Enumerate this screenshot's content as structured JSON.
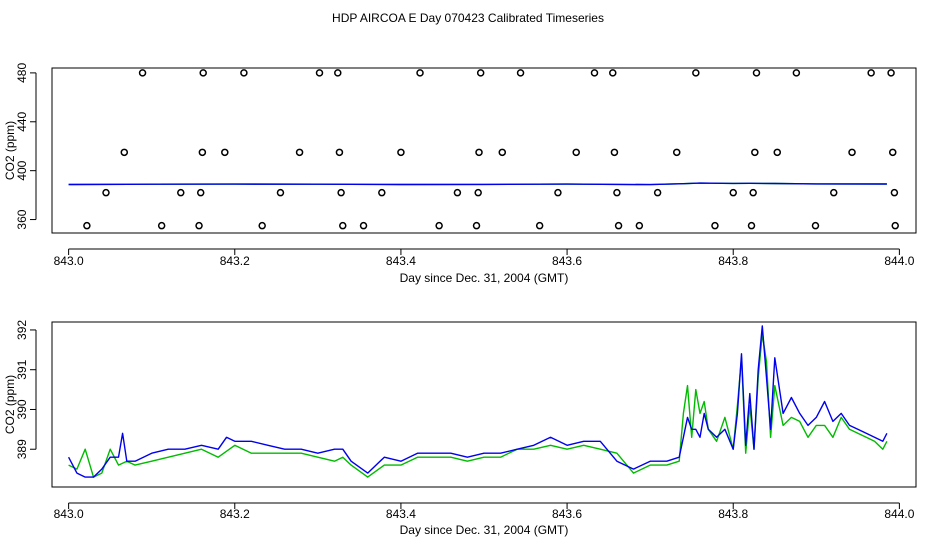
{
  "title": "HDP AIRCOA E  Day 070423  Calibrated Timeseries",
  "chart_data": [
    {
      "type": "scatter",
      "xlabel": "Day since Dec. 31, 2004 (GMT)",
      "ylabel": "CO2 (ppm)",
      "xlim": [
        842.98,
        844.02
      ],
      "ylim": [
        349,
        484
      ],
      "xticks": [
        {
          "v": 843.0,
          "label": "843.0"
        },
        {
          "v": 843.2,
          "label": "843.2"
        },
        {
          "v": 843.4,
          "label": "843.4"
        },
        {
          "v": 843.6,
          "label": "843.6"
        },
        {
          "v": 843.8,
          "label": "843.8"
        },
        {
          "v": 844.0,
          "label": "844.0"
        }
      ],
      "yticks": [
        {
          "v": 360,
          "label": "360"
        },
        {
          "v": 400,
          "label": "400"
        },
        {
          "v": 440,
          "label": "440"
        },
        {
          "v": 480,
          "label": "480"
        }
      ],
      "grid": false,
      "colors": {
        "points": "#000000",
        "line_green": "#00bb00",
        "line_blue": "#0000ee"
      },
      "points": [
        {
          "x": 843.089,
          "y": 480
        },
        {
          "x": 843.162,
          "y": 480
        },
        {
          "x": 843.211,
          "y": 480
        },
        {
          "x": 843.302,
          "y": 480
        },
        {
          "x": 843.324,
          "y": 480
        },
        {
          "x": 843.423,
          "y": 480
        },
        {
          "x": 843.496,
          "y": 480
        },
        {
          "x": 843.544,
          "y": 480
        },
        {
          "x": 843.633,
          "y": 480
        },
        {
          "x": 843.655,
          "y": 480
        },
        {
          "x": 843.755,
          "y": 480
        },
        {
          "x": 843.828,
          "y": 480
        },
        {
          "x": 843.876,
          "y": 480
        },
        {
          "x": 843.966,
          "y": 480
        },
        {
          "x": 843.99,
          "y": 480
        },
        {
          "x": 843.067,
          "y": 415
        },
        {
          "x": 843.161,
          "y": 415
        },
        {
          "x": 843.188,
          "y": 415
        },
        {
          "x": 843.278,
          "y": 415
        },
        {
          "x": 843.326,
          "y": 415
        },
        {
          "x": 843.4,
          "y": 415
        },
        {
          "x": 843.494,
          "y": 415
        },
        {
          "x": 843.522,
          "y": 415
        },
        {
          "x": 843.611,
          "y": 415
        },
        {
          "x": 843.657,
          "y": 415
        },
        {
          "x": 843.732,
          "y": 415
        },
        {
          "x": 843.826,
          "y": 415
        },
        {
          "x": 843.853,
          "y": 415
        },
        {
          "x": 843.943,
          "y": 415
        },
        {
          "x": 843.992,
          "y": 415
        },
        {
          "x": 843.045,
          "y": 382
        },
        {
          "x": 843.135,
          "y": 382
        },
        {
          "x": 843.159,
          "y": 382
        },
        {
          "x": 843.255,
          "y": 382
        },
        {
          "x": 843.328,
          "y": 382
        },
        {
          "x": 843.377,
          "y": 382
        },
        {
          "x": 843.468,
          "y": 382
        },
        {
          "x": 843.493,
          "y": 382
        },
        {
          "x": 843.589,
          "y": 382
        },
        {
          "x": 843.66,
          "y": 382
        },
        {
          "x": 843.709,
          "y": 382
        },
        {
          "x": 843.8,
          "y": 382
        },
        {
          "x": 843.824,
          "y": 382
        },
        {
          "x": 843.921,
          "y": 382
        },
        {
          "x": 843.994,
          "y": 382
        },
        {
          "x": 843.022,
          "y": 355
        },
        {
          "x": 843.112,
          "y": 355
        },
        {
          "x": 843.157,
          "y": 355
        },
        {
          "x": 843.233,
          "y": 355
        },
        {
          "x": 843.33,
          "y": 355
        },
        {
          "x": 843.355,
          "y": 355
        },
        {
          "x": 843.446,
          "y": 355
        },
        {
          "x": 843.491,
          "y": 355
        },
        {
          "x": 843.567,
          "y": 355
        },
        {
          "x": 843.662,
          "y": 355
        },
        {
          "x": 843.687,
          "y": 355
        },
        {
          "x": 843.778,
          "y": 355
        },
        {
          "x": 843.822,
          "y": 355
        },
        {
          "x": 843.899,
          "y": 355
        },
        {
          "x": 843.995,
          "y": 355
        }
      ],
      "series": [
        {
          "color": "green",
          "x": [
            843.0,
            843.1,
            843.2,
            843.3,
            843.4,
            843.5,
            843.6,
            843.7,
            843.74,
            843.76,
            843.8,
            843.82,
            843.85,
            843.9,
            843.985
          ],
          "y": [
            388.7,
            388.9,
            389.0,
            388.9,
            388.7,
            388.8,
            389.0,
            388.6,
            389.3,
            389.8,
            389.6,
            389.7,
            389.5,
            389.2,
            389.1
          ]
        },
        {
          "color": "blue",
          "x": [
            843.0,
            843.1,
            843.2,
            843.3,
            843.4,
            843.5,
            843.6,
            843.7,
            843.74,
            843.76,
            843.8,
            843.82,
            843.85,
            843.9,
            843.985
          ],
          "y": [
            388.7,
            388.9,
            389.0,
            388.9,
            388.7,
            388.8,
            389.0,
            388.6,
            389.3,
            389.8,
            389.6,
            389.7,
            389.5,
            389.2,
            389.1
          ]
        }
      ]
    },
    {
      "type": "line",
      "xlabel": "Day since Dec. 31, 2004 (GMT)",
      "ylabel": "CO2 (ppm)",
      "xlim": [
        842.98,
        844.02
      ],
      "ylim": [
        388.05,
        392.2
      ],
      "xticks": [
        {
          "v": 843.0,
          "label": "843.0"
        },
        {
          "v": 843.2,
          "label": "843.2"
        },
        {
          "v": 843.4,
          "label": "843.4"
        },
        {
          "v": 843.6,
          "label": "843.6"
        },
        {
          "v": 843.8,
          "label": "843.8"
        },
        {
          "v": 844.0,
          "label": "844.0"
        }
      ],
      "yticks": [
        {
          "v": 389,
          "label": "389"
        },
        {
          "v": 390,
          "label": "390"
        },
        {
          "v": 391,
          "label": "391"
        },
        {
          "v": 392,
          "label": "392"
        }
      ],
      "grid": false,
      "colors": {
        "line_green": "#00bb00",
        "line_blue": "#0000ee"
      },
      "series": [
        {
          "color": "green",
          "x": [
            843.0,
            843.01,
            843.02,
            843.03,
            843.04,
            843.05,
            843.06,
            843.07,
            843.08,
            843.1,
            843.12,
            843.14,
            843.16,
            843.18,
            843.2,
            843.22,
            843.24,
            843.26,
            843.28,
            843.3,
            843.32,
            843.33,
            843.34,
            843.36,
            843.38,
            843.4,
            843.42,
            843.44,
            843.46,
            843.48,
            843.5,
            843.52,
            843.54,
            843.56,
            843.58,
            843.6,
            843.62,
            843.64,
            843.66,
            843.68,
            843.7,
            843.72,
            843.735,
            843.74,
            843.745,
            843.75,
            843.755,
            843.76,
            843.765,
            843.77,
            843.78,
            843.79,
            843.8,
            843.805,
            843.81,
            843.815,
            843.82,
            843.825,
            843.83,
            843.835,
            843.84,
            843.845,
            843.85,
            843.86,
            843.87,
            843.88,
            843.89,
            843.9,
            843.91,
            843.92,
            843.93,
            843.94,
            843.95,
            843.96,
            843.97,
            843.98,
            843.985
          ],
          "y": [
            388.6,
            388.5,
            389.0,
            388.3,
            388.4,
            389.0,
            388.6,
            388.7,
            388.6,
            388.7,
            388.8,
            388.9,
            389.0,
            388.8,
            389.1,
            388.9,
            388.9,
            388.9,
            388.9,
            388.8,
            388.7,
            388.8,
            388.6,
            388.3,
            388.6,
            388.6,
            388.8,
            388.8,
            388.8,
            388.7,
            388.8,
            388.8,
            389.0,
            389.0,
            389.1,
            389.0,
            389.1,
            389.0,
            388.9,
            388.4,
            388.6,
            388.6,
            388.7,
            389.9,
            390.6,
            389.3,
            390.5,
            389.9,
            390.2,
            389.5,
            389.2,
            389.8,
            389.0,
            390.1,
            391.3,
            388.9,
            390.1,
            389.0,
            390.8,
            391.9,
            391.2,
            389.3,
            390.6,
            389.6,
            389.8,
            389.7,
            389.3,
            389.6,
            389.6,
            389.3,
            389.8,
            389.5,
            389.4,
            389.3,
            389.2,
            389.0,
            389.2
          ]
        },
        {
          "color": "blue",
          "x": [
            843.0,
            843.01,
            843.02,
            843.03,
            843.04,
            843.05,
            843.06,
            843.065,
            843.07,
            843.08,
            843.1,
            843.12,
            843.14,
            843.16,
            843.18,
            843.19,
            843.2,
            843.22,
            843.24,
            843.26,
            843.28,
            843.3,
            843.32,
            843.33,
            843.34,
            843.36,
            843.38,
            843.4,
            843.42,
            843.44,
            843.46,
            843.48,
            843.5,
            843.52,
            843.54,
            843.56,
            843.58,
            843.6,
            843.62,
            843.64,
            843.66,
            843.68,
            843.7,
            843.72,
            843.735,
            843.74,
            843.745,
            843.75,
            843.755,
            843.76,
            843.765,
            843.77,
            843.78,
            843.79,
            843.8,
            843.805,
            843.81,
            843.815,
            843.82,
            843.825,
            843.83,
            843.835,
            843.84,
            843.845,
            843.85,
            843.86,
            843.87,
            843.88,
            843.89,
            843.9,
            843.91,
            843.92,
            843.93,
            843.94,
            843.95,
            843.96,
            843.97,
            843.98,
            843.985
          ],
          "y": [
            388.8,
            388.4,
            388.3,
            388.3,
            388.5,
            388.8,
            388.8,
            389.4,
            388.7,
            388.7,
            388.9,
            389.0,
            389.0,
            389.1,
            389.0,
            389.3,
            389.2,
            389.2,
            389.1,
            389.0,
            389.0,
            388.9,
            389.0,
            389.0,
            388.7,
            388.4,
            388.8,
            388.7,
            388.9,
            388.9,
            388.9,
            388.8,
            388.9,
            388.9,
            389.0,
            389.1,
            389.3,
            389.1,
            389.2,
            389.2,
            388.7,
            388.5,
            388.7,
            388.7,
            388.8,
            389.3,
            389.8,
            389.5,
            389.5,
            389.3,
            389.9,
            389.5,
            389.3,
            389.5,
            389.0,
            389.9,
            391.4,
            389.1,
            390.4,
            389.0,
            391.0,
            392.1,
            390.8,
            389.5,
            391.3,
            389.9,
            390.3,
            389.9,
            389.6,
            389.8,
            390.2,
            389.7,
            389.9,
            389.6,
            389.5,
            389.4,
            389.3,
            389.2,
            389.4
          ]
        }
      ]
    }
  ]
}
